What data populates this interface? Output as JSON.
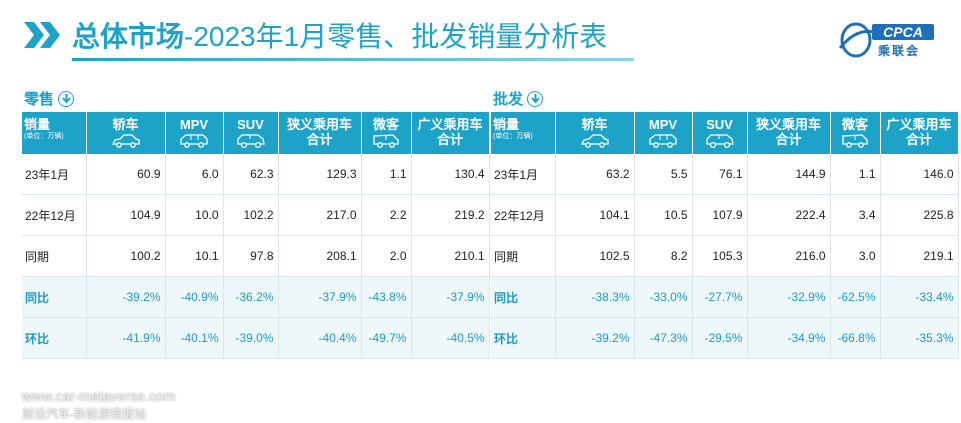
{
  "header": {
    "title_bold": "总体市场",
    "title_rest": "-2023年1月零售、批发销量分析表",
    "logo_text": "CPCA",
    "logo_cn": "乘联会"
  },
  "unit_label": "销量",
  "unit_note": "(单位：万辆)",
  "columns": [
    "轿车",
    "MPV",
    "SUV",
    "狭义乘用车合计",
    "微客",
    "广义乘用车合计"
  ],
  "column_icons": [
    "sedan-icon",
    "mpv-icon",
    "suv-icon",
    "",
    "minivan-icon",
    ""
  ],
  "retail": {
    "label": "零售",
    "rows": [
      {
        "label": "23年1月",
        "cells": [
          "60.9",
          "6.0",
          "62.3",
          "129.3",
          "1.1",
          "130.4"
        ]
      },
      {
        "label": "22年12月",
        "cells": [
          "104.9",
          "10.0",
          "102.2",
          "217.0",
          "2.2",
          "219.2"
        ]
      },
      {
        "label": "同期",
        "cells": [
          "100.2",
          "10.1",
          "97.8",
          "208.1",
          "2.0",
          "210.1"
        ]
      },
      {
        "label": "同比",
        "cells": [
          "-39.2%",
          "-40.9%",
          "-36.2%",
          "-37.9%",
          "-43.8%",
          "-37.9%"
        ]
      },
      {
        "label": "环比",
        "cells": [
          "-41.9%",
          "-40.1%",
          "-39.0%",
          "-40.4%",
          "-49.7%",
          "-40.5%"
        ]
      }
    ]
  },
  "wholesale": {
    "label": "批发",
    "rows": [
      {
        "label": "23年1月",
        "cells": [
          "63.2",
          "5.5",
          "76.1",
          "144.9",
          "1.1",
          "146.0"
        ]
      },
      {
        "label": "22年12月",
        "cells": [
          "104.1",
          "10.5",
          "107.9",
          "222.4",
          "3.4",
          "225.8"
        ]
      },
      {
        "label": "同期",
        "cells": [
          "102.5",
          "8.2",
          "105.3",
          "216.0",
          "3.0",
          "219.1"
        ]
      },
      {
        "label": "同比",
        "cells": [
          "-38.3%",
          "-33.0%",
          "-27.7%",
          "-32.9%",
          "-62.5%",
          "-33.4%"
        ]
      },
      {
        "label": "环比",
        "cells": [
          "-39.2%",
          "-47.3%",
          "-29.5%",
          "-34.9%",
          "-66.8%",
          "-35.3%"
        ]
      }
    ]
  },
  "watermark": {
    "line1": "www.car-metaverse.com",
    "line2": "前沿汽车-新能源情报站"
  },
  "colors": {
    "accent": "#1ea3c8",
    "pct_text": "#1e9ac2",
    "pct_bg": "#eef8fb"
  }
}
